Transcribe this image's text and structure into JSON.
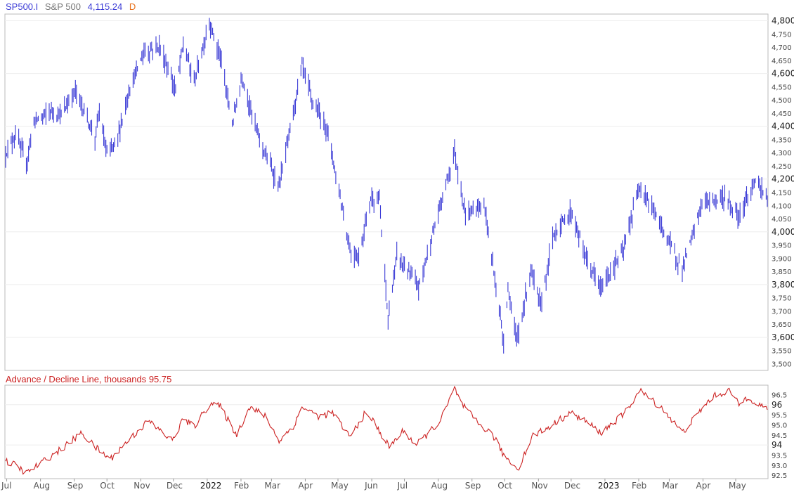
{
  "header": {
    "symbol": "SP500.I",
    "name": "S&P 500",
    "last_value": "4,115.24",
    "period": "D",
    "colors": {
      "symbol": "#3b3bd6",
      "name": "#777777",
      "value": "#3b3bd6",
      "period": "#e8701a"
    }
  },
  "sub_header": {
    "label": "Advance / Decline Line, thousands",
    "value": "95.75",
    "color": "#cc2222"
  },
  "x_axis_labels": [
    "Jul",
    "Aug",
    "Sep",
    "Oct",
    "Nov",
    "Dec",
    "2022",
    "Feb",
    "Mar",
    "Apr",
    "May",
    "Jun",
    "Jul",
    "Aug",
    "Sep",
    "Oct",
    "Nov",
    "Dec",
    "2023",
    "Feb",
    "Mar",
    "Apr",
    "May"
  ],
  "chart_data": [
    {
      "type": "ohlc",
      "title": "SP500.I S&P 500 4,115.24 D",
      "color": "#3b3bd6",
      "ylim": [
        3480,
        4820
      ],
      "y_ticks_major": [
        "4,800",
        "4,600",
        "4,400",
        "4,200",
        "4,000",
        "3,800",
        "3,600"
      ],
      "y_ticks_minor": [
        "4,750",
        "4,700",
        "4,650",
        "4,550",
        "4,500",
        "4,450",
        "4,350",
        "4,300",
        "4,250",
        "4,150",
        "4,100",
        "4,050",
        "3,950",
        "3,900",
        "3,850",
        "3,750",
        "3,700",
        "3,650",
        "3,550",
        "3,500"
      ],
      "anchors": [
        {
          "date": "2021-06-30",
          "close": 4297
        },
        {
          "date": "2021-07-09",
          "close": 4370
        },
        {
          "date": "2021-07-19",
          "close": 4258
        },
        {
          "date": "2021-07-26",
          "close": 4420
        },
        {
          "date": "2021-08-12",
          "close": 4460
        },
        {
          "date": "2021-08-20",
          "close": 4440
        },
        {
          "date": "2021-09-02",
          "close": 4536
        },
        {
          "date": "2021-09-10",
          "close": 4460
        },
        {
          "date": "2021-09-20",
          "close": 4358
        },
        {
          "date": "2021-09-24",
          "close": 4455
        },
        {
          "date": "2021-09-30",
          "close": 4307
        },
        {
          "date": "2021-10-04",
          "close": 4300
        },
        {
          "date": "2021-10-11",
          "close": 4361
        },
        {
          "date": "2021-10-22",
          "close": 4545
        },
        {
          "date": "2021-11-04",
          "close": 4680
        },
        {
          "date": "2021-11-18",
          "close": 4705
        },
        {
          "date": "2021-11-30",
          "close": 4567
        },
        {
          "date": "2021-12-03",
          "close": 4538
        },
        {
          "date": "2021-12-10",
          "close": 4712
        },
        {
          "date": "2021-12-20",
          "close": 4568
        },
        {
          "date": "2022-01-03",
          "close": 4796
        },
        {
          "date": "2022-01-13",
          "close": 4660
        },
        {
          "date": "2022-01-24",
          "close": 4410
        },
        {
          "date": "2022-02-02",
          "close": 4589
        },
        {
          "date": "2022-02-14",
          "close": 4401
        },
        {
          "date": "2022-02-24",
          "close": 4288
        },
        {
          "date": "2022-03-08",
          "close": 4170
        },
        {
          "date": "2022-03-29",
          "close": 4631
        },
        {
          "date": "2022-04-08",
          "close": 4488
        },
        {
          "date": "2022-04-21",
          "close": 4393
        },
        {
          "date": "2022-05-02",
          "close": 4155
        },
        {
          "date": "2022-05-12",
          "close": 3930
        },
        {
          "date": "2022-05-20",
          "close": 3901
        },
        {
          "date": "2022-05-31",
          "close": 4132
        },
        {
          "date": "2022-06-08",
          "close": 4115
        },
        {
          "date": "2022-06-16",
          "close": 3666
        },
        {
          "date": "2022-06-24",
          "close": 3911
        },
        {
          "date": "2022-07-14",
          "close": 3790
        },
        {
          "date": "2022-08-16",
          "close": 4305
        },
        {
          "date": "2022-08-26",
          "close": 4057
        },
        {
          "date": "2022-09-12",
          "close": 4110
        },
        {
          "date": "2022-09-30",
          "close": 3585
        },
        {
          "date": "2022-10-04",
          "close": 3790
        },
        {
          "date": "2022-10-12",
          "close": 3577
        },
        {
          "date": "2022-10-25",
          "close": 3859
        },
        {
          "date": "2022-11-03",
          "close": 3719
        },
        {
          "date": "2022-11-15",
          "close": 3991
        },
        {
          "date": "2022-12-01",
          "close": 4076
        },
        {
          "date": "2022-12-15",
          "close": 3895
        },
        {
          "date": "2022-12-28",
          "close": 3783
        },
        {
          "date": "2023-01-18",
          "close": 3928
        },
        {
          "date": "2023-02-02",
          "close": 4179
        },
        {
          "date": "2023-02-23",
          "close": 4012
        },
        {
          "date": "2023-03-13",
          "close": 3855
        },
        {
          "date": "2023-03-31",
          "close": 4109
        },
        {
          "date": "2023-04-20",
          "close": 4130
        },
        {
          "date": "2023-05-04",
          "close": 4061
        },
        {
          "date": "2023-05-19",
          "close": 4191
        },
        {
          "date": "2023-05-26",
          "close": 4151
        },
        {
          "date": "2023-05-30",
          "close": 4115
        }
      ],
      "approx_daily_range": 45
    },
    {
      "type": "line",
      "title": "Advance / Decline Line, thousands 95.75",
      "color": "#cc2222",
      "ylim": [
        92.4,
        96.9
      ],
      "y_ticks_major": [
        "96",
        "94"
      ],
      "y_ticks_minor": [
        "96.5",
        "95.5",
        "95.0",
        "94.5",
        "93.5",
        "93.0",
        "92.5"
      ],
      "anchors": [
        {
          "date": "2021-06-30",
          "value": 93.2
        },
        {
          "date": "2021-07-09",
          "value": 93.0
        },
        {
          "date": "2021-07-19",
          "value": 92.6
        },
        {
          "date": "2021-08-20",
          "value": 93.8
        },
        {
          "date": "2021-09-08",
          "value": 94.6
        },
        {
          "date": "2021-09-20",
          "value": 93.9
        },
        {
          "date": "2021-10-04",
          "value": 93.3
        },
        {
          "date": "2021-10-22",
          "value": 94.3
        },
        {
          "date": "2021-11-08",
          "value": 95.2
        },
        {
          "date": "2021-11-30",
          "value": 94.2
        },
        {
          "date": "2021-12-10",
          "value": 95.3
        },
        {
          "date": "2021-12-20",
          "value": 94.9
        },
        {
          "date": "2022-01-04",
          "value": 96.1
        },
        {
          "date": "2022-01-13",
          "value": 95.9
        },
        {
          "date": "2022-01-28",
          "value": 94.5
        },
        {
          "date": "2022-02-09",
          "value": 95.9
        },
        {
          "date": "2022-02-24",
          "value": 95.4
        },
        {
          "date": "2022-03-08",
          "value": 94.2
        },
        {
          "date": "2022-03-22",
          "value": 95.0
        },
        {
          "date": "2022-03-29",
          "value": 95.9
        },
        {
          "date": "2022-04-14",
          "value": 95.4
        },
        {
          "date": "2022-04-26",
          "value": 95.6
        },
        {
          "date": "2022-05-12",
          "value": 94.4
        },
        {
          "date": "2022-05-25",
          "value": 95.5
        },
        {
          "date": "2022-06-01",
          "value": 95.3
        },
        {
          "date": "2022-06-17",
          "value": 93.9
        },
        {
          "date": "2022-06-30",
          "value": 94.7
        },
        {
          "date": "2022-07-12",
          "value": 94.0
        },
        {
          "date": "2022-08-03",
          "value": 95.2
        },
        {
          "date": "2022-08-16",
          "value": 96.8
        },
        {
          "date": "2022-08-23",
          "value": 96.0
        },
        {
          "date": "2022-09-06",
          "value": 95.1
        },
        {
          "date": "2022-09-20",
          "value": 94.5
        },
        {
          "date": "2022-09-30",
          "value": 93.5
        },
        {
          "date": "2022-10-13",
          "value": 92.8
        },
        {
          "date": "2022-10-27",
          "value": 94.5
        },
        {
          "date": "2022-11-08",
          "value": 94.8
        },
        {
          "date": "2022-11-30",
          "value": 95.6
        },
        {
          "date": "2022-12-14",
          "value": 95.2
        },
        {
          "date": "2022-12-28",
          "value": 94.6
        },
        {
          "date": "2023-01-18",
          "value": 95.5
        },
        {
          "date": "2023-02-02",
          "value": 96.7
        },
        {
          "date": "2023-02-23",
          "value": 95.8
        },
        {
          "date": "2023-03-13",
          "value": 94.6
        },
        {
          "date": "2023-03-31",
          "value": 95.8
        },
        {
          "date": "2023-04-10",
          "value": 96.4
        },
        {
          "date": "2023-04-25",
          "value": 96.7
        },
        {
          "date": "2023-05-04",
          "value": 96.0
        },
        {
          "date": "2023-05-12",
          "value": 96.4
        },
        {
          "date": "2023-05-30",
          "value": 95.75
        }
      ]
    }
  ]
}
